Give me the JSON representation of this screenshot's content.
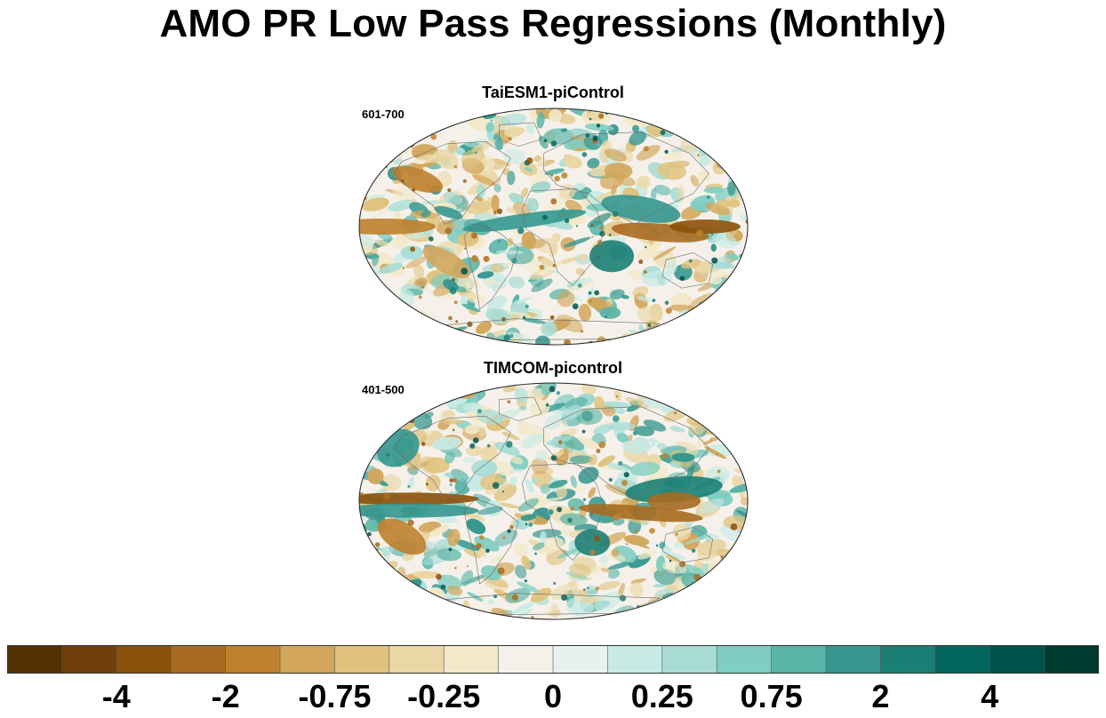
{
  "title": "AMO PR Low Pass Regressions (Monthly)",
  "panels": [
    {
      "model": "TaiESM1-piControl",
      "period": "601-700"
    },
    {
      "model": "TIMCOM-picontrol",
      "period": "401-500"
    }
  ],
  "colorbar": {
    "colors": [
      "#543005",
      "#6f3f0a",
      "#8c510a",
      "#a86b22",
      "#bf812d",
      "#d2a65c",
      "#dfc27d",
      "#ead7a5",
      "#f3e8c8",
      "#f5f1ea",
      "#e6f2ef",
      "#c7eae5",
      "#a8ddd5",
      "#80cdc1",
      "#5ab4a8",
      "#35978f",
      "#1b7f76",
      "#01665e",
      "#00534a",
      "#003c30"
    ],
    "labels": [
      {
        "text": "-4",
        "boundary": 2
      },
      {
        "text": "-2",
        "boundary": 4
      },
      {
        "text": "-0.75",
        "boundary": 6
      },
      {
        "text": "-0.25",
        "boundary": 8
      },
      {
        "text": "0",
        "boundary": 10
      },
      {
        "text": "0.25",
        "boundary": 12
      },
      {
        "text": "0.75",
        "boundary": 14
      },
      {
        "text": "2",
        "boundary": 16
      },
      {
        "text": "4",
        "boundary": 18
      }
    ]
  }
}
